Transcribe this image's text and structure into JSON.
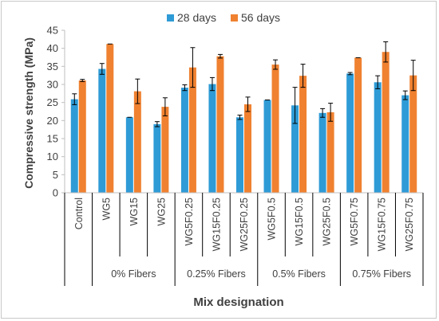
{
  "chart_data": {
    "type": "bar",
    "ylabel": "Compressive strength (MPa)",
    "xlabel": "Mix designation",
    "ylim": [
      0,
      45
    ],
    "yticks": [
      0,
      5,
      10,
      15,
      20,
      25,
      30,
      35,
      40,
      45
    ],
    "grid": false,
    "legend_position": "top",
    "categories": [
      "Control",
      "WG5",
      "WG15",
      "WG25",
      "WG5F0.25",
      "WG15F0.25",
      "WG25F0.25",
      "WG5F0.5",
      "WG15F0.5",
      "WG25F0.5",
      "WG5F0.75",
      "WG15F0.75",
      "WG25F0.75"
    ],
    "groups": [
      {
        "label": "",
        "start": 0,
        "end": 0
      },
      {
        "label": "0% Fibers",
        "start": 1,
        "end": 3
      },
      {
        "label": "0.25% Fibers",
        "start": 4,
        "end": 6
      },
      {
        "label": "0.5% Fibers",
        "start": 7,
        "end": 9
      },
      {
        "label": "0.75% Fibers",
        "start": 10,
        "end": 12
      }
    ],
    "series": [
      {
        "name": "28 days",
        "color": "#2E9BD6",
        "values": [
          25.9,
          34.3,
          20.9,
          19.0,
          29.1,
          30.1,
          20.9,
          25.7,
          24.2,
          22.1,
          33.0,
          30.6,
          27.0
        ],
        "errors": [
          1.5,
          1.5,
          0.0,
          0.7,
          0.8,
          1.8,
          0.6,
          0.0,
          5.0,
          1.2,
          0.3,
          1.8,
          1.2
        ]
      },
      {
        "name": "56 days",
        "color": "#F08130",
        "values": [
          31.1,
          41.2,
          28.1,
          23.8,
          34.7,
          37.8,
          24.5,
          35.5,
          32.4,
          22.3,
          37.4,
          39.0,
          32.5
        ],
        "errors": [
          0.3,
          0.0,
          3.4,
          2.5,
          5.5,
          0.5,
          2.0,
          1.3,
          3.2,
          2.5,
          0.0,
          2.8,
          4.2
        ]
      }
    ]
  }
}
